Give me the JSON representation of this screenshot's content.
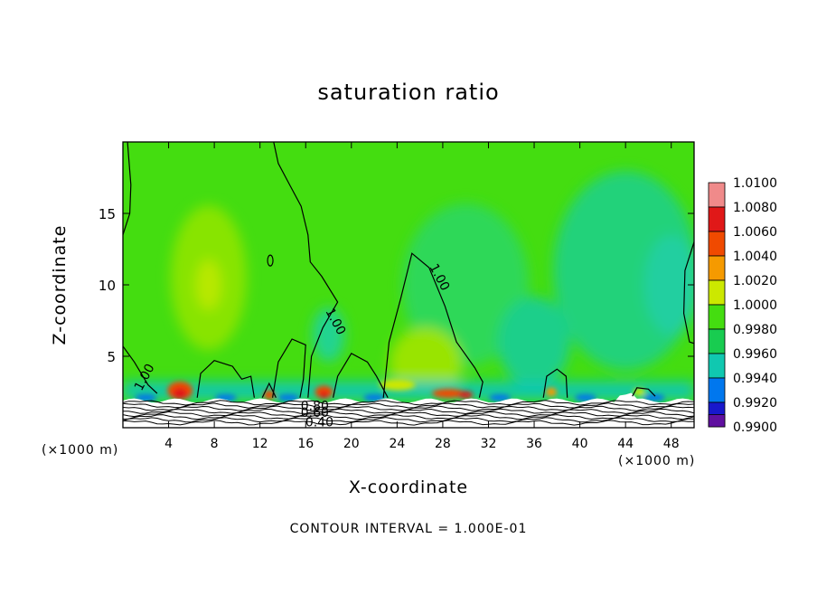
{
  "chart_data": {
    "type": "heatmap",
    "title": "saturation ratio",
    "xlabel": "X-coordinate",
    "ylabel": "Z-coordinate",
    "x_unit": "(×1000 m)",
    "y_unit": "(×1000 m)",
    "xlim": [
      0,
      50
    ],
    "ylim": [
      0,
      20
    ],
    "x_ticks": [
      4,
      8,
      12,
      16,
      20,
      24,
      28,
      32,
      36,
      40,
      44,
      48
    ],
    "y_ticks": [
      5,
      10,
      15
    ],
    "colorbar": {
      "levels": [
        "1.0100",
        "1.0080",
        "1.0060",
        "1.0040",
        "1.0020",
        "1.0000",
        "0.9980",
        "0.9960",
        "0.9940",
        "0.9920",
        "0.9900"
      ],
      "colors": [
        "#f08a8a",
        "#e01818",
        "#f04a00",
        "#f59a00",
        "#cce800",
        "#44dd10",
        "#18cc50",
        "#10c8b0",
        "#0077ee",
        "#1818cc",
        "#6010a0"
      ]
    },
    "contour_labels": [
      "1.00",
      "1.00",
      "1.00",
      "0.80",
      "0.60",
      "0.40"
    ],
    "contour_interval_text": "CONTOUR INTERVAL = 1.000E-01"
  }
}
